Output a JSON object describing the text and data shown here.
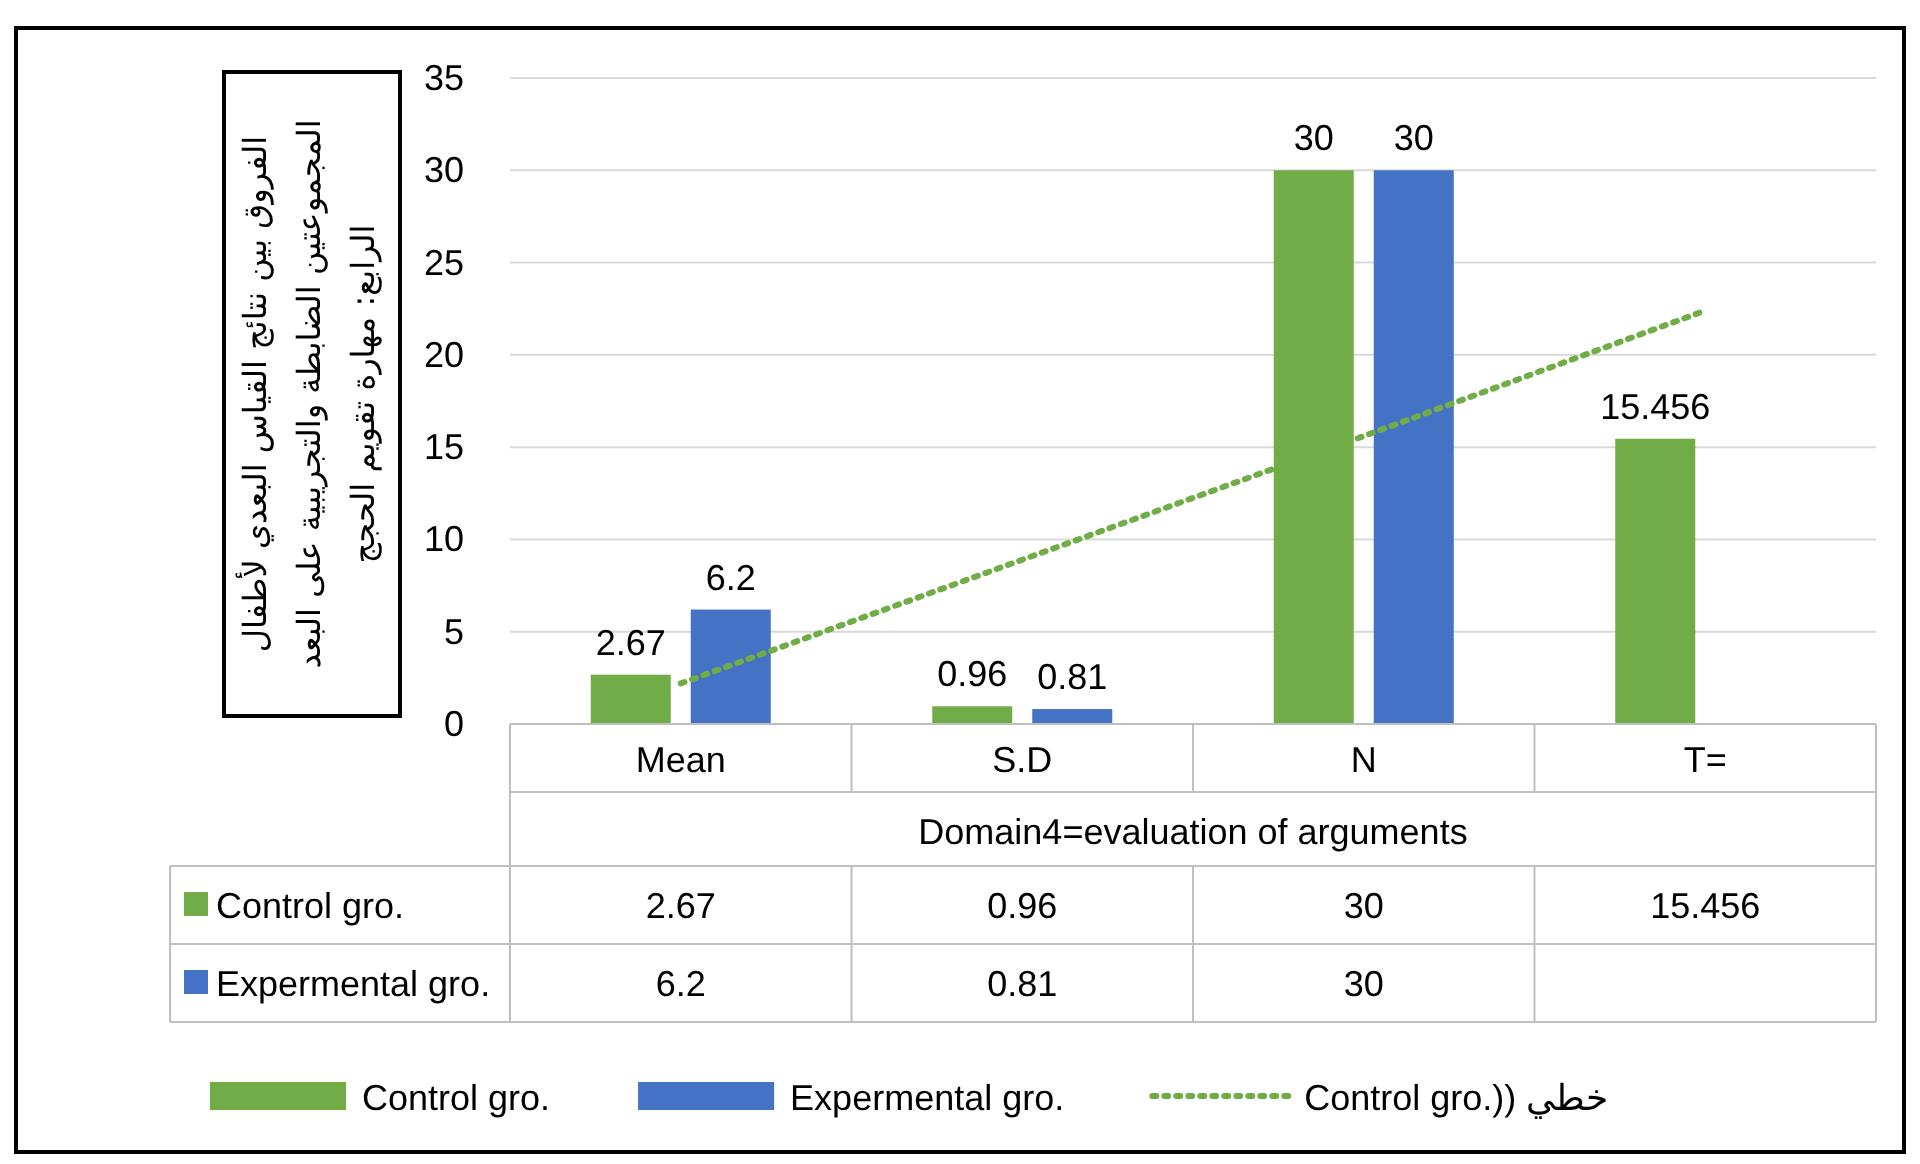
{
  "chart_data": {
    "type": "bar",
    "categories": [
      "Mean",
      "S.D",
      "N",
      "T="
    ],
    "xlabel": "Domain4=evaluation of arguments",
    "ylabel": "الفروق بين نتائج القياس البعدي لأطفال المجموعتين الضابطة والتجريبية على البعد الرابع: مهارة تقويم الحجج",
    "series": [
      {
        "name": "Control gro.",
        "color": "#70ad47",
        "values": [
          2.67,
          0.96,
          30,
          15.456
        ],
        "value_labels": [
          "2.67",
          "0.96",
          "30",
          "15.456"
        ]
      },
      {
        "name": "Expermental gro.",
        "color": "#4472c4",
        "values": [
          6.2,
          0.81,
          30,
          null
        ],
        "value_labels": [
          "6.2",
          "0.81",
          "30",
          null
        ]
      },
      {
        "name": "Control gro.)) خطي",
        "type": "line",
        "line_style": "dotted",
        "color": "#70ad47",
        "values": [
          2.2,
          8.9,
          15.6,
          22.4
        ]
      }
    ],
    "ylim": [
      0,
      35
    ],
    "yticks": [
      0,
      5,
      10,
      15,
      20,
      25,
      30,
      35
    ],
    "grid": "y",
    "legend": "bottom"
  }
}
